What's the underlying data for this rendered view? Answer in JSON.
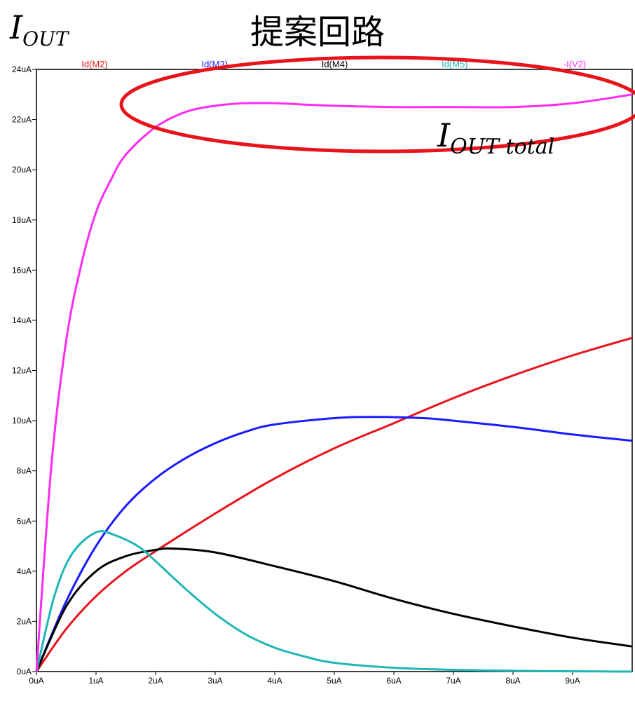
{
  "title": "提案回路",
  "annotations": {
    "iout_base": "I",
    "iout_sub": "OUT",
    "iout_total_base": "I",
    "iout_total_sub": "OUT total"
  },
  "chart_data": {
    "type": "line",
    "x_ticks": [
      "0uA",
      "1uA",
      "2uA",
      "3uA",
      "4uA",
      "5uA",
      "6uA",
      "7uA",
      "8uA",
      "9uA"
    ],
    "y_ticks": [
      "0uA",
      "2uA",
      "4uA",
      "6uA",
      "8uA",
      "10uA",
      "12uA",
      "14uA",
      "16uA",
      "18uA",
      "20uA",
      "22uA",
      "24uA"
    ],
    "xlim": [
      0,
      10
    ],
    "ylim": [
      0,
      24
    ],
    "grid": false,
    "legend_position": "top",
    "highlight_ellipse_color": "#e8141b",
    "series": [
      {
        "name": "Id(M2)",
        "color": "#e8141b",
        "x": [
          0,
          0.5,
          1,
          1.5,
          2,
          3,
          4,
          5,
          6,
          7,
          8,
          9,
          10
        ],
        "y": [
          0,
          1.7,
          3.0,
          4.0,
          4.8,
          6.3,
          7.7,
          8.9,
          9.9,
          10.9,
          11.8,
          12.6,
          13.3
        ]
      },
      {
        "name": "Id(M3)",
        "color": "#1a1aff",
        "x": [
          0,
          0.5,
          1,
          1.5,
          2,
          2.5,
          3,
          3.5,
          4,
          5,
          5.7,
          6.5,
          7,
          8,
          9,
          10
        ],
        "y": [
          0,
          2.8,
          5.0,
          6.6,
          7.7,
          8.5,
          9.1,
          9.55,
          9.85,
          10.1,
          10.15,
          10.1,
          10.0,
          9.75,
          9.45,
          9.2
        ]
      },
      {
        "name": "Id(M4)",
        "color": "#000000",
        "x": [
          0,
          0.5,
          1,
          1.5,
          2,
          2.3,
          3,
          4,
          5,
          6,
          7,
          8,
          9,
          10
        ],
        "y": [
          0,
          2.6,
          4.0,
          4.6,
          4.85,
          4.9,
          4.75,
          4.2,
          3.6,
          2.9,
          2.3,
          1.8,
          1.35,
          1.0
        ]
      },
      {
        "name": "Id(M5)",
        "color": "#1fb6b6",
        "x": [
          0,
          0.3,
          0.6,
          1,
          1.3,
          1.7,
          2,
          2.5,
          3,
          3.5,
          4,
          4.5,
          5,
          6,
          7,
          8,
          9,
          10
        ],
        "y": [
          0,
          3.0,
          4.7,
          5.55,
          5.45,
          5.0,
          4.4,
          3.3,
          2.3,
          1.5,
          0.95,
          0.6,
          0.35,
          0.15,
          0.07,
          0.03,
          0.01,
          0.0
        ]
      },
      {
        "name": "-I(V2)",
        "color": "#ff2bf3",
        "x": [
          0,
          0.25,
          0.5,
          0.75,
          1,
          1.25,
          1.5,
          2,
          2.5,
          3,
          3.5,
          4,
          5,
          6,
          7,
          8,
          9,
          10
        ],
        "y": [
          0,
          8.2,
          13.2,
          16.2,
          18.3,
          19.6,
          20.6,
          21.7,
          22.3,
          22.55,
          22.65,
          22.65,
          22.55,
          22.5,
          22.5,
          22.5,
          22.65,
          23.0
        ]
      }
    ]
  }
}
